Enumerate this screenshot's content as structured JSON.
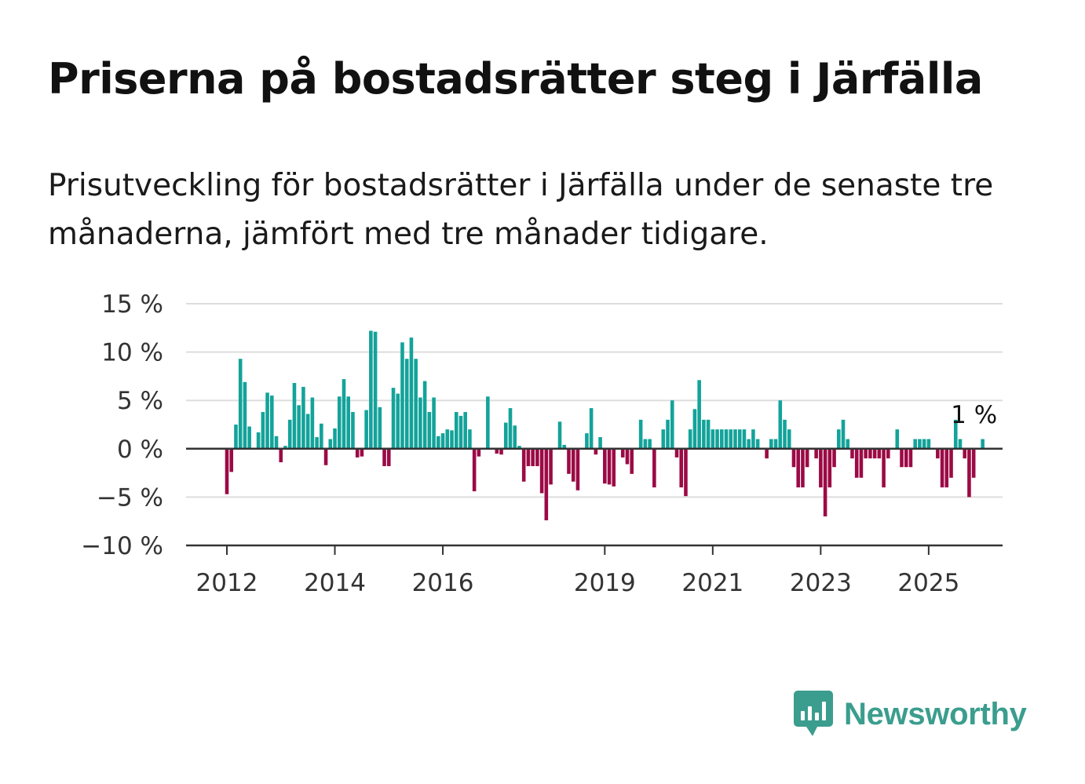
{
  "title": "Priserna på bostadsrätter steg i Järfälla",
  "subtitle": "Prisutveckling för bostadsrätter i Järfälla under de senaste tre månaderna, jämfört med tre månader tidigare.",
  "brand": {
    "name": "Newsworthy",
    "icon": "newsworthy-chart-logo-icon"
  },
  "colors": {
    "positive": "#13a39a",
    "negative": "#9b0a45",
    "grid": "#dddddd",
    "axis": "#333333"
  },
  "chart_data": {
    "type": "bar",
    "ylim": [
      -10,
      15
    ],
    "y_ticks": [
      {
        "value": 15,
        "label": "15 %"
      },
      {
        "value": 10,
        "label": "10 %"
      },
      {
        "value": 5,
        "label": "5 %"
      },
      {
        "value": 0,
        "label": "0 %"
      },
      {
        "value": -5,
        "label": "−5 %"
      },
      {
        "value": -10,
        "label": "−10 %"
      }
    ],
    "x_ticks": [
      {
        "date": "2012-01",
        "label": "2012"
      },
      {
        "date": "2014-01",
        "label": "2014"
      },
      {
        "date": "2016-01",
        "label": "2016"
      },
      {
        "date": "2019-01",
        "label": "2019"
      },
      {
        "date": "2021-01",
        "label": "2021"
      },
      {
        "date": "2023-01",
        "label": "2023"
      },
      {
        "date": "2025-01",
        "label": "2025"
      }
    ],
    "start_date": "2012-01",
    "values": [
      -4.7,
      -2.4,
      2.5,
      9.3,
      6.9,
      2.3,
      0,
      1.7,
      3.8,
      5.8,
      5.5,
      1.3,
      -1.4,
      0.3,
      3,
      6.8,
      4.5,
      6.4,
      3.6,
      5.3,
      1.2,
      2.6,
      -1.7,
      1,
      2.1,
      5.4,
      7.2,
      5.4,
      3.8,
      -0.9,
      -0.8,
      4,
      12.2,
      12.1,
      4.3,
      -1.8,
      -1.8,
      6.3,
      5.7,
      11,
      9.3,
      11.5,
      9.3,
      5.3,
      7,
      3.8,
      5.3,
      1.3,
      1.6,
      2,
      1.9,
      3.8,
      3.4,
      3.8,
      2,
      -4.4,
      -0.8,
      0,
      5.4,
      0,
      -0.5,
      -0.6,
      2.7,
      4.2,
      2.4,
      0.3,
      -3.4,
      -1.8,
      -1.8,
      -1.8,
      -4.6,
      -7.4,
      -3.7,
      0,
      2.8,
      0.4,
      -2.6,
      -3.4,
      -4.3,
      0,
      1.6,
      4.2,
      -0.6,
      1.2,
      -3.6,
      -3.7,
      -3.9,
      0,
      -0.9,
      -1.6,
      -2.6,
      0,
      3,
      1,
      1,
      -4,
      0,
      2,
      3,
      5,
      -0.9,
      -4,
      -4.9,
      2,
      4.1,
      7.1,
      3,
      3,
      2,
      2,
      2,
      2,
      2,
      2,
      2,
      2,
      1,
      2,
      1,
      0,
      -1,
      1,
      1,
      5,
      3,
      2,
      -1.9,
      -4,
      -4,
      -1.9,
      0,
      -1,
      -4,
      -7,
      -4,
      -1.9,
      2,
      3,
      1,
      -1,
      -3,
      -3,
      -1,
      -1,
      -1,
      -1,
      -4,
      -1,
      0,
      2,
      -1.9,
      -1.9,
      -1.9,
      1,
      1,
      1,
      1,
      0,
      -1,
      -4,
      -4,
      -3,
      3,
      1,
      -1,
      -5,
      -3,
      0,
      1
    ],
    "annotations": [
      {
        "date": "2025-11",
        "label": "1 %"
      }
    ]
  }
}
